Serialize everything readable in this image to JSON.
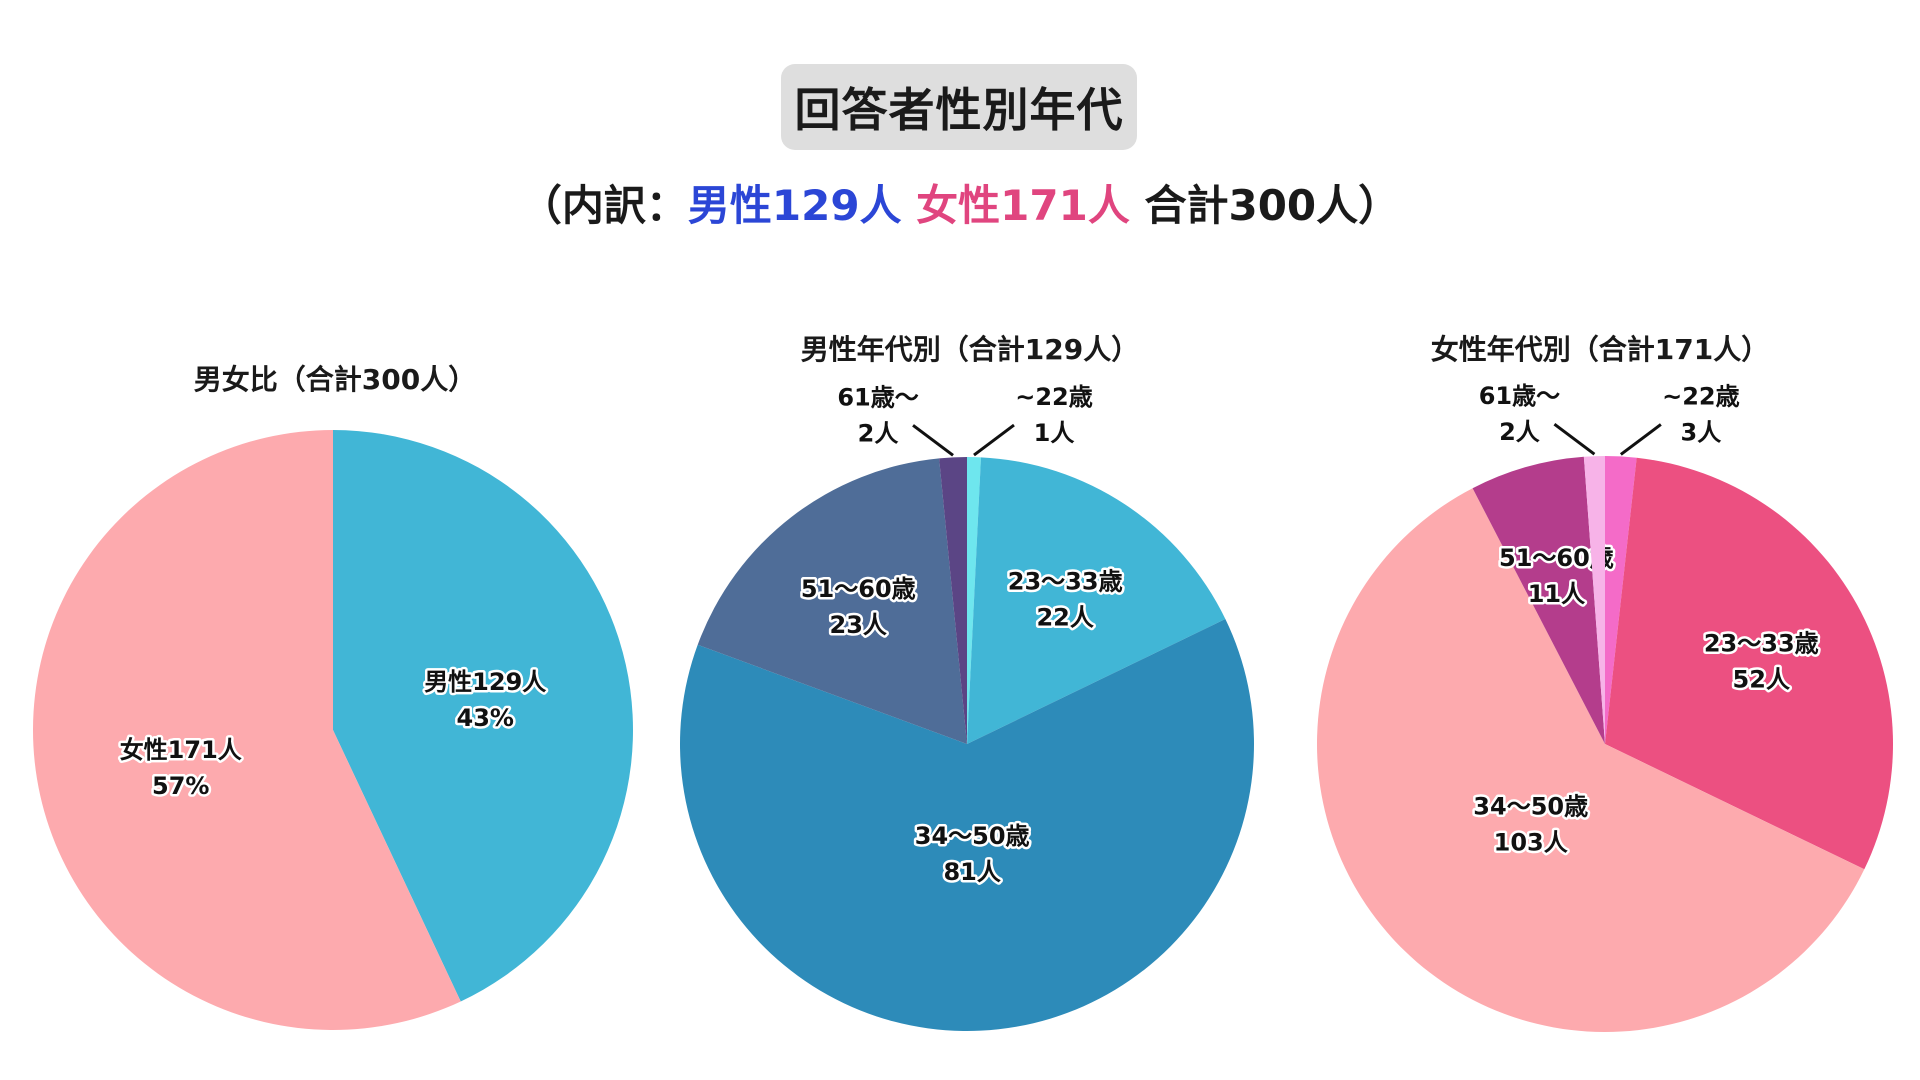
{
  "title": "回答者性別年代",
  "subtitle": {
    "open": "（内訳：",
    "male": "男性129人",
    "female": "女性171人",
    "total": "合計300人）",
    "male_color": "#2b46d6",
    "female_color": "#e0457f"
  },
  "chart_data": [
    {
      "type": "pie",
      "title": "男女比（合計300人）",
      "slices": [
        {
          "label": "男性129人",
          "value": 129,
          "pct": "43%",
          "color": "#41b6d6"
        },
        {
          "label": "女性171人",
          "value": 171,
          "pct": "57%",
          "color": "#fdaaae"
        }
      ]
    },
    {
      "type": "pie",
      "title": "男性年代別（合計129人）",
      "slices": [
        {
          "label": "~22歳",
          "value": 1,
          "count": "1人",
          "color": "#6ee6ee"
        },
        {
          "label": "23～33歳",
          "value": 22,
          "count": "22人",
          "color": "#41b6d6"
        },
        {
          "label": "34～50歳",
          "value": 81,
          "count": "81人",
          "color": "#2d8bb9"
        },
        {
          "label": "51～60歳",
          "value": 23,
          "count": "23人",
          "color": "#4f6d98"
        },
        {
          "label": "61歳～",
          "value": 2,
          "count": "2人",
          "color": "#5b4585"
        }
      ]
    },
    {
      "type": "pie",
      "title": "女性年代別（合計171人）",
      "slices": [
        {
          "label": "~22歳",
          "value": 3,
          "count": "3人",
          "color": "#f46bc8"
        },
        {
          "label": "23～33歳",
          "value": 52,
          "count": "52人",
          "color": "#ec5081"
        },
        {
          "label": "34～50歳",
          "value": 103,
          "count": "103人",
          "color": "#fdaaae"
        },
        {
          "label": "51～60歳",
          "value": 11,
          "count": "11人",
          "color": "#b43d8c"
        },
        {
          "label": "61歳～",
          "value": 2,
          "count": "2人",
          "color": "#f7b3e8"
        }
      ]
    }
  ]
}
